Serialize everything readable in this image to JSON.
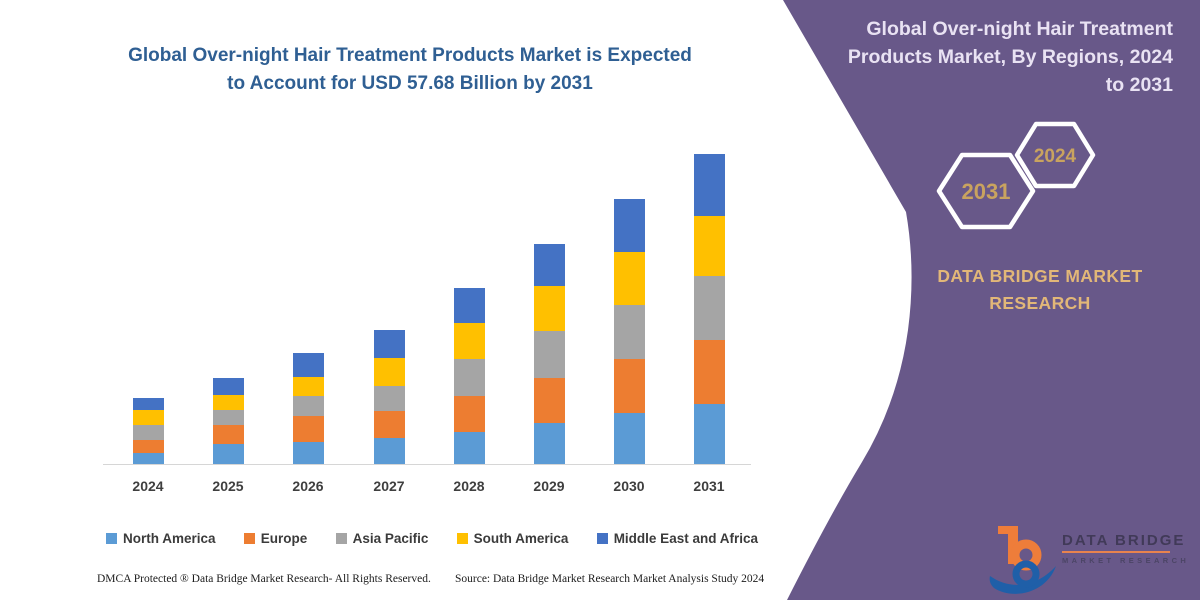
{
  "title": {
    "text": "Global Over-night Hair Treatment Products Market is Expected\nto Account for USD 57.68 Billion by 2031"
  },
  "side_panel": {
    "heading": "Global Over-night Hair Treatment\nProducts Market, By Regions, 2024\nto 2031",
    "hexagons": [
      {
        "label": "2031"
      },
      {
        "label": "2024"
      }
    ],
    "brand_text": "DATA BRIDGE MARKET\nRESEARCH",
    "bg_color": "#685889",
    "accent_text_color": "#e2b778",
    "hex_year_color": "#c9a35f"
  },
  "logo": {
    "line1": "DATA BRIDGE",
    "line2": "MARKET RESEARCH"
  },
  "footer": {
    "left": "DMCA Protected ® Data Bridge Market Research-  All Rights Reserved.",
    "right": "Source: Data Bridge Market Research  Market Analysis Study 2024"
  },
  "chart_data": {
    "type": "bar",
    "stacked": true,
    "unit": "USD Billion",
    "title": "Global Over-night Hair Treatment Products Market is Expected to Account for USD 57.68 Billion by 2031",
    "xlabel": "",
    "ylabel": "",
    "grid": false,
    "legend_position": "bottom",
    "categories": [
      "2024",
      "2025",
      "2026",
      "2027",
      "2028",
      "2029",
      "2030",
      "2031"
    ],
    "series": [
      {
        "name": "North America",
        "color": "#5B9BD5",
        "values": [
          2.0,
          3.8,
          4.0,
          4.8,
          5.9,
          7.6,
          9.4,
          11.2
        ]
      },
      {
        "name": "Europe",
        "color": "#ED7D31",
        "values": [
          2.5,
          3.4,
          5.0,
          5.0,
          6.8,
          8.4,
          10.1,
          11.8
        ]
      },
      {
        "name": "Asia Pacific",
        "color": "#A5A5A5",
        "values": [
          2.8,
          2.8,
          3.6,
          4.8,
          6.8,
          8.8,
          10.1,
          11.9
        ]
      },
      {
        "name": "South America",
        "color": "#FFC000",
        "values": [
          2.7,
          2.8,
          3.5,
          5.2,
          6.8,
          8.4,
          9.9,
          11.2
        ]
      },
      {
        "name": "Middle East and Africa",
        "color": "#4472C4",
        "values": [
          2.3,
          3.2,
          4.6,
          5.1,
          6.5,
          7.8,
          9.8,
          11.58
        ]
      }
    ],
    "totals": [
      12.3,
      16.0,
      20.7,
      24.9,
      32.8,
      41.0,
      49.3,
      57.68
    ]
  }
}
